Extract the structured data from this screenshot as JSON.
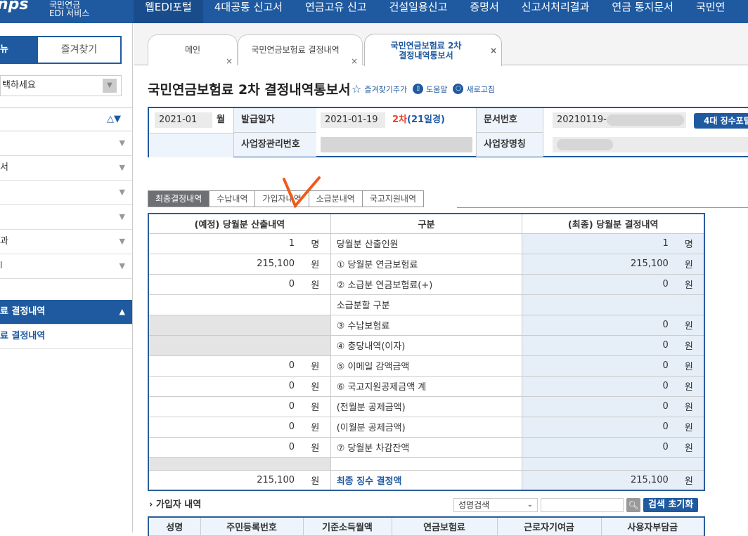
{
  "header": {
    "logo_mark": "nps",
    "logo_sub_line1": "국민연금",
    "logo_sub_line2": "EDI 서비스",
    "nav": [
      "웹EDI포털",
      "4대공통 신고서",
      "연금고유 신고",
      "건설일용신고",
      "증명서",
      "신고서처리결과",
      "연금 통지문서",
      "국민연"
    ]
  },
  "sidebar": {
    "tab_menu": "뉴",
    "tab_favorites": "즐겨찾기",
    "select_placeholder": "택하세요",
    "items": [
      "",
      "서",
      "",
      "",
      "과",
      "l"
    ],
    "active_item": "료 결정내역",
    "sub_item": "료 결정내역"
  },
  "tabs": [
    {
      "label": "메인"
    },
    {
      "label": "국민연금보험료 결정내역"
    },
    {
      "label_line1": "국민연금보험료 2차",
      "label_line2": "결정내역통보서"
    }
  ],
  "page": {
    "title": "국민연금보험료 2차 결정내역통보서",
    "favorite_add": "즐겨찾기추가",
    "help": "도움말",
    "refresh": "새로고침"
  },
  "info": {
    "month_value": "2021-01",
    "month_unit": "월",
    "issue_date_label": "발급일자",
    "issue_date": "2021-01-19",
    "round": "2차",
    "round_note": "(21일경)",
    "doc_no_label": "문서번호",
    "doc_no": "20210119-",
    "portal_button": "4대 징수포털",
    "biz_no_label": "사업장관리번호",
    "biz_name_label": "사업장명칭"
  },
  "subtabs": [
    "최종결정내역",
    "수납내역",
    "가입자내역",
    "소급분내역",
    "국고지원내역"
  ],
  "table": {
    "headers": [
      "(예정) 당월분 산출내역",
      "구분",
      "(최종) 당월분 결정내역"
    ],
    "rows": [
      {
        "left": "1",
        "lu": "명",
        "label": "당월분 산출인원",
        "right": "1",
        "ru": "명"
      },
      {
        "left": "215,100",
        "lu": "원",
        "label": "① 당월분 연금보험료",
        "right": "215,100",
        "ru": "원"
      },
      {
        "left": "0",
        "lu": "원",
        "label": "② 소급분 연금보험료(+)",
        "right": "0",
        "ru": "원"
      },
      {
        "left": "",
        "lu": "",
        "label": "소급분할 구분",
        "right": "",
        "ru": ""
      },
      {
        "left": "",
        "lu": "",
        "label": "③ 수납보험료",
        "right": "0",
        "ru": "원",
        "gray": true
      },
      {
        "left": "",
        "lu": "",
        "label": "④ 충당내역(이자)",
        "right": "0",
        "ru": "원",
        "gray": true
      },
      {
        "left": "0",
        "lu": "원",
        "label": "⑤ 이메일 감액금액",
        "right": "0",
        "ru": "원"
      },
      {
        "left": "0",
        "lu": "원",
        "label": "⑥ 국고지원공제금액 계",
        "right": "0",
        "ru": "원"
      },
      {
        "left": "0",
        "lu": "원",
        "label": "(전월분 공제금액)",
        "right": "0",
        "ru": "원"
      },
      {
        "left": "0",
        "lu": "원",
        "label": "(이월분 공제금액)",
        "right": "0",
        "ru": "원"
      },
      {
        "left": "0",
        "lu": "원",
        "label": "⑦ 당월분 차감잔액",
        "right": "0",
        "ru": "원"
      }
    ],
    "final": {
      "left": "215,100",
      "lu": "원",
      "label": "최종 징수 결정액",
      "right": "215,100",
      "ru": "원"
    }
  },
  "members": {
    "section_title": "› 가입자 내역",
    "search_select": "성명검색",
    "reset_button": "검색 초기화",
    "headers": [
      "성명",
      "주민등록번호",
      "기준소득월액",
      "연금보험료",
      "근로자기여금",
      "사용자부담금"
    ]
  },
  "colors": {
    "primary": "#1f5aa0",
    "accent_red": "#e8412c",
    "annotation": "#f05a1a"
  }
}
